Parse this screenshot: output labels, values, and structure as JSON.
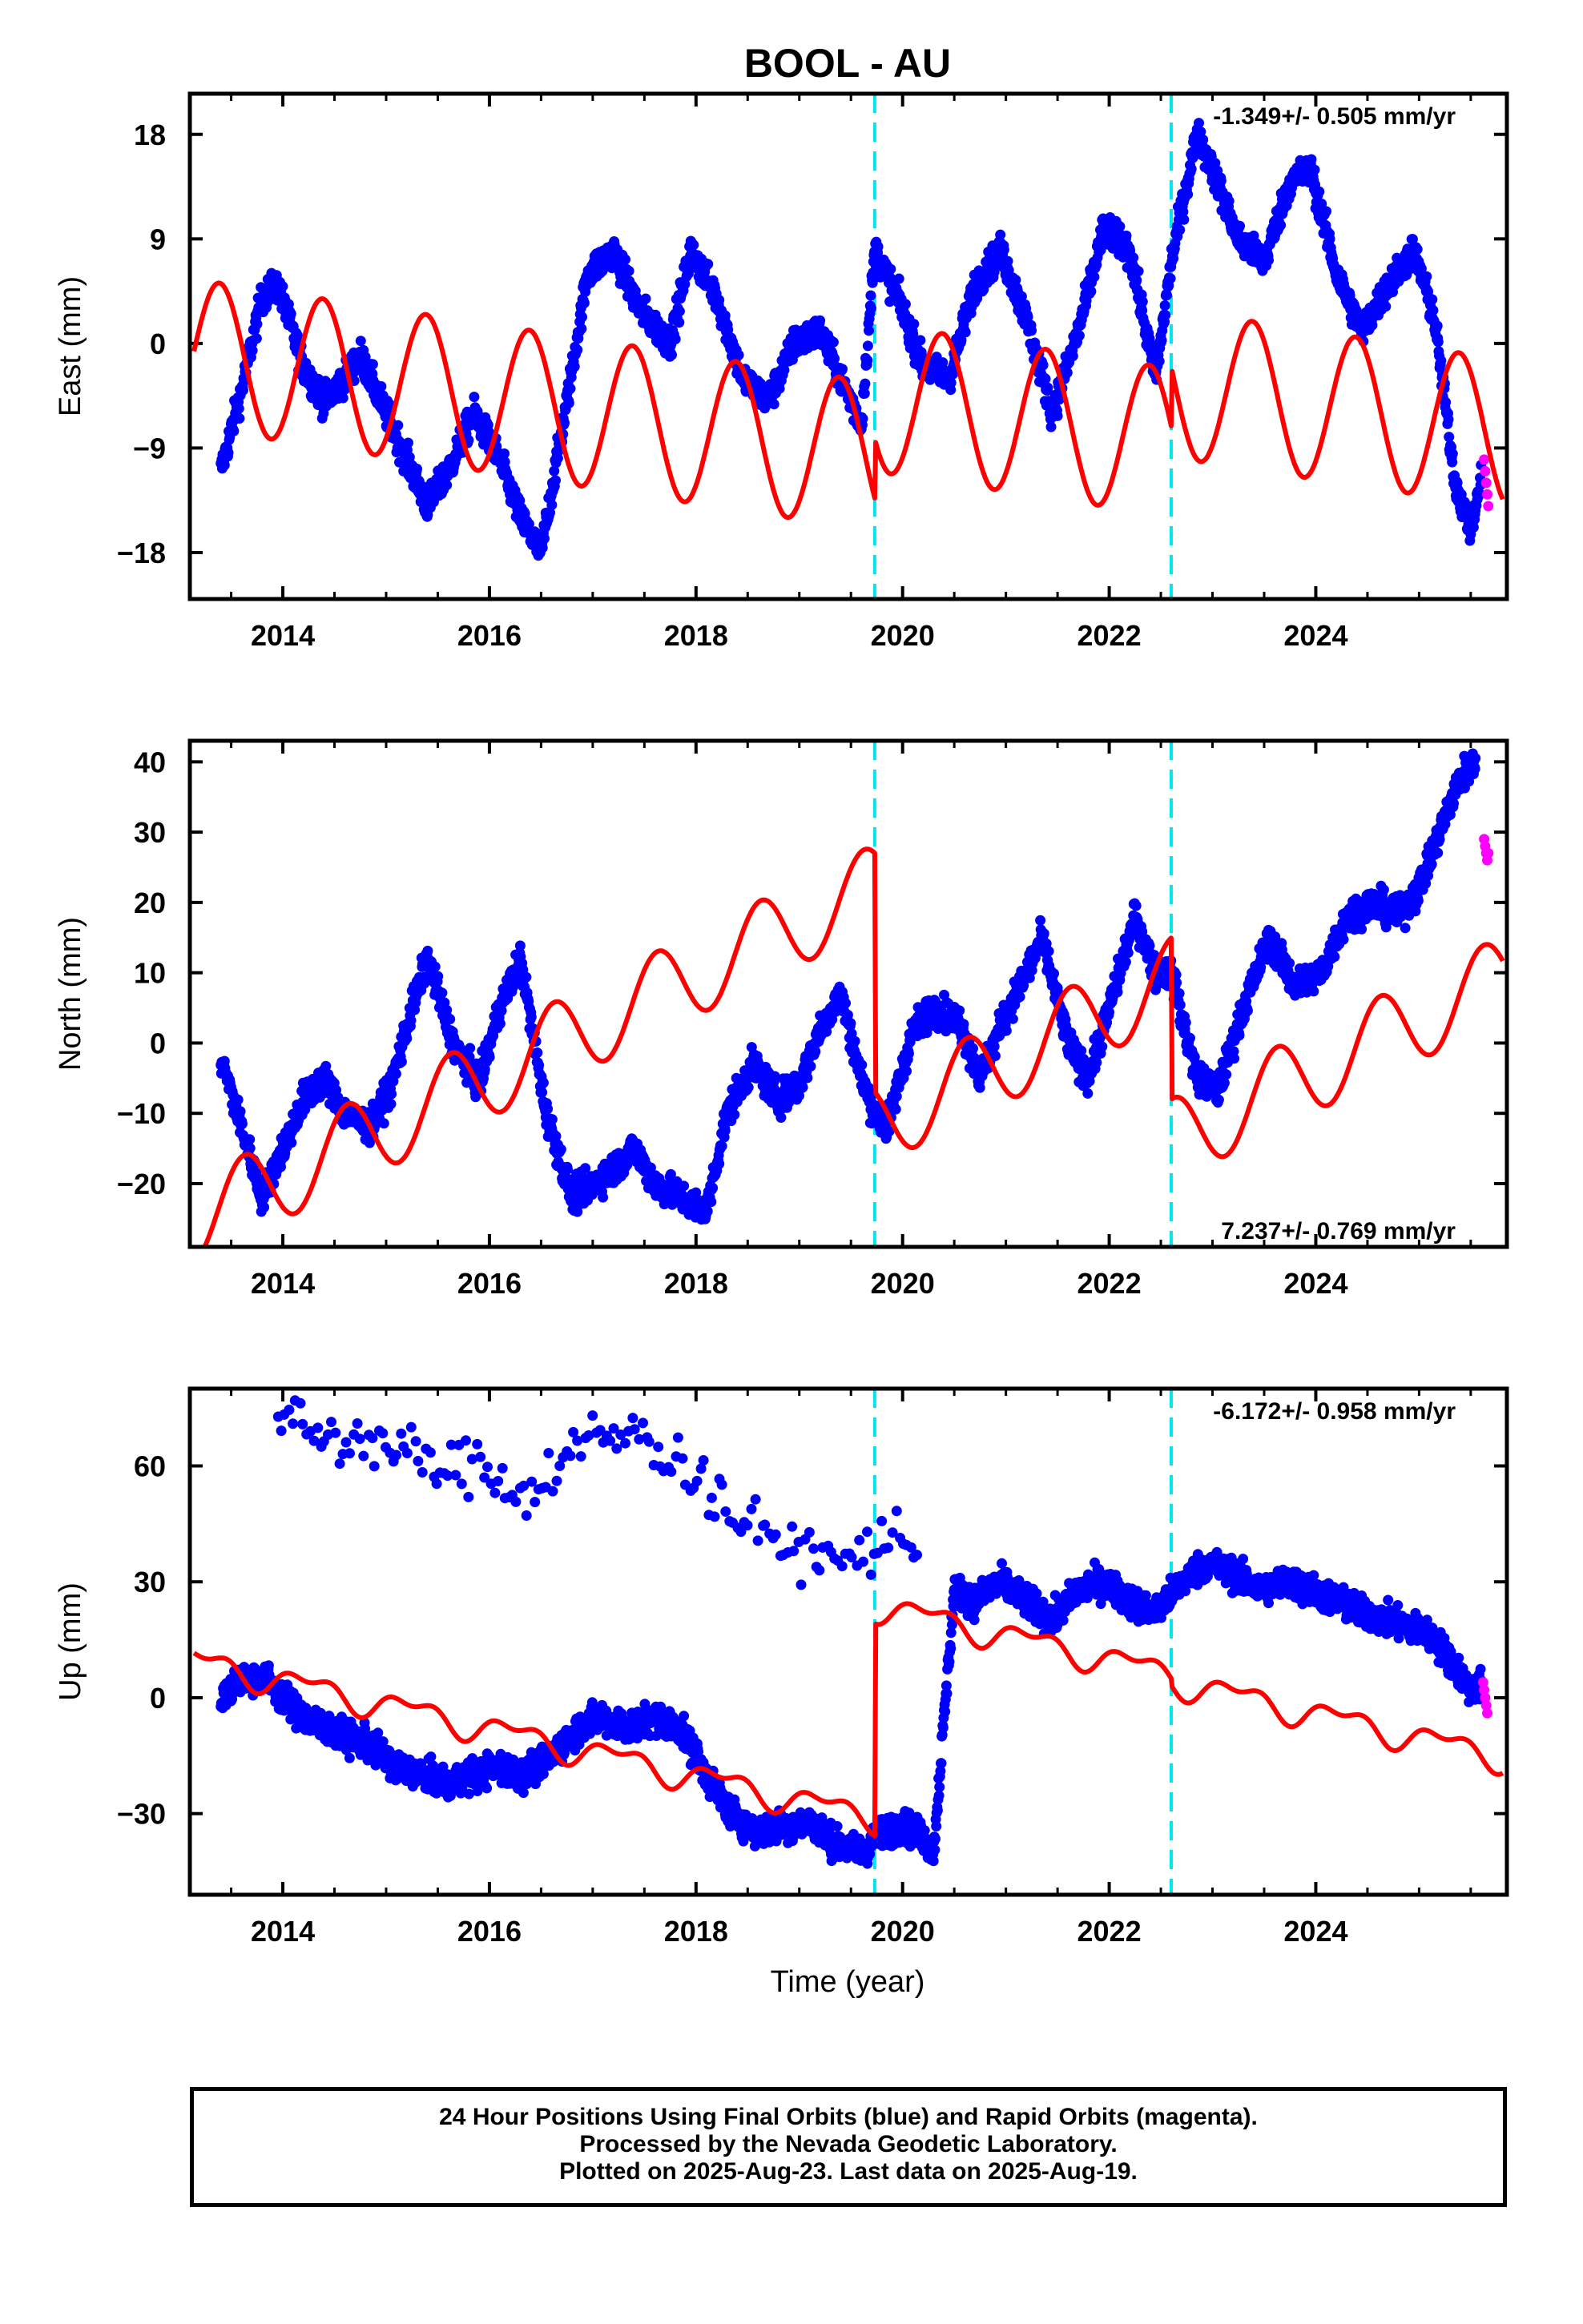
{
  "figure": {
    "title": "BOOL - AU",
    "xlabel": "Time (year)",
    "footer": [
      "24 Hour Positions Using Final Orbits (blue) and Rapid Orbits (magenta).",
      "Processed by the Nevada Geodetic Laboratory.",
      "Plotted on 2025-Aug-23. Last data on 2025-Aug-19."
    ]
  },
  "colors": {
    "final_orbits": "#0000ff",
    "rapid_orbits": "#ff00ff",
    "model_fit": "#ff0000",
    "steps": "#00e5ee",
    "frame": "#000000"
  },
  "chart_data": [
    {
      "type": "scatter",
      "ylabel": "East (mm)",
      "xlim": [
        2013.1,
        2025.85
      ],
      "ylim": [
        -22,
        21.5
      ],
      "xticks": [
        2014,
        2016,
        2018,
        2020,
        2022,
        2024
      ],
      "yticks": [
        -18,
        -9,
        0,
        9,
        18
      ],
      "ytick_labels": [
        "−18",
        "−9",
        "0",
        "9",
        "18"
      ],
      "rate": "-1.349+/- 0.505 mm/yr",
      "rate_position": "top-right",
      "steps": [
        2019.73,
        2022.6
      ],
      "series": [
        {
          "role": "final",
          "x": [
            2013.4,
            2013.6,
            2013.8,
            2013.95,
            2014.2,
            2014.4,
            2014.6,
            2014.75,
            2015.0,
            2015.2,
            2015.4,
            2015.6,
            2015.85,
            2016.1,
            2016.3,
            2016.5,
            2016.75,
            2016.95,
            2017.2,
            2017.45,
            2017.75,
            2017.95,
            2018.2,
            2018.45,
            2018.7,
            2018.95,
            2019.2,
            2019.45,
            2019.6,
            2019.73,
            2019.95,
            2020.2,
            2020.45,
            2020.7,
            2020.95,
            2021.2,
            2021.45,
            2021.7,
            2021.95,
            2022.2,
            2022.45,
            2022.6,
            2022.85,
            2023.0,
            2023.25,
            2023.5,
            2023.75,
            2023.95,
            2024.2,
            2024.45,
            2024.7,
            2024.95,
            2025.15,
            2025.35,
            2025.5,
            2025.6
          ],
          "y": [
            -11,
            -4,
            4,
            5,
            -2,
            -5,
            -3,
            -1,
            -6,
            -10,
            -14,
            -11,
            -6,
            -10,
            -15,
            -18,
            -5,
            6,
            8,
            3,
            0,
            8,
            4,
            -3,
            -5,
            0,
            1,
            -4,
            -7,
            8,
            4,
            -2,
            -3,
            5,
            8,
            2,
            -6,
            1,
            10,
            8,
            -3,
            7,
            18,
            15,
            9,
            7,
            14,
            15,
            6,
            1,
            5,
            8,
            2,
            -12,
            -16,
            -12
          ]
        },
        {
          "role": "rapid",
          "x": [
            2025.63,
            2025.64,
            2025.65,
            2025.66,
            2025.67
          ],
          "y": [
            -10,
            -11,
            -12,
            -13,
            -14
          ]
        },
        {
          "role": "model",
          "model": {
            "t0": 2013.4,
            "segments": [
              [
                2013.1,
                2019.73,
                -1.2,
                -1.349
              ],
              [
                2019.73,
                2022.6,
                3.9,
                -1.349
              ],
              [
                2022.6,
                2025.85,
                9.0,
                -1.349
              ]
            ],
            "annual_cos": -4.8,
            "annual_sin": 4.2,
            "semiannual_cos": 0.0,
            "semiannual_sin": 0.0
          }
        }
      ]
    },
    {
      "type": "scatter",
      "ylabel": "North (mm)",
      "xlim": [
        2013.1,
        2025.85
      ],
      "ylim": [
        -29,
        43
      ],
      "xticks": [
        2014,
        2016,
        2018,
        2020,
        2022,
        2024
      ],
      "yticks": [
        -20,
        -10,
        0,
        10,
        20,
        30,
        40
      ],
      "ytick_labels": [
        "−20",
        "−10",
        "0",
        "10",
        "20",
        "30",
        "40"
      ],
      "rate": "7.237+/- 0.769 mm/yr",
      "rate_position": "bottom-right",
      "steps": [
        2019.73,
        2022.6
      ],
      "series": [
        {
          "role": "final",
          "x": [
            2013.4,
            2013.6,
            2013.8,
            2014.0,
            2014.2,
            2014.4,
            2014.6,
            2014.85,
            2015.05,
            2015.25,
            2015.4,
            2015.65,
            2015.9,
            2016.1,
            2016.3,
            2016.55,
            2016.8,
            2017.0,
            2017.2,
            2017.4,
            2017.6,
            2017.85,
            2018.1,
            2018.3,
            2018.55,
            2018.8,
            2019.0,
            2019.2,
            2019.4,
            2019.6,
            2019.73,
            2019.85,
            2020.1,
            2020.3,
            2020.55,
            2020.75,
            2021.0,
            2021.2,
            2021.35,
            2021.6,
            2021.8,
            2022.0,
            2022.25,
            2022.45,
            2022.6,
            2022.85,
            2023.05,
            2023.3,
            2023.55,
            2023.8,
            2024.05,
            2024.3,
            2024.55,
            2024.8,
            2025.0,
            2025.2,
            2025.4,
            2025.55
          ],
          "y": [
            -2,
            -12,
            -22,
            -15,
            -8,
            -5,
            -10,
            -12,
            -6,
            5,
            12,
            0,
            -6,
            5,
            12,
            -10,
            -22,
            -20,
            -18,
            -15,
            -20,
            -22,
            -24,
            -10,
            -3,
            -8,
            -6,
            2,
            7,
            -5,
            -10,
            -12,
            2,
            5,
            3,
            -5,
            4,
            10,
            15,
            0,
            -5,
            5,
            18,
            10,
            10,
            -5,
            -7,
            5,
            15,
            8,
            10,
            18,
            20,
            18,
            22,
            30,
            38,
            40
          ]
        },
        {
          "role": "rapid",
          "x": [
            2025.63,
            2025.64,
            2025.65,
            2025.66,
            2025.67
          ],
          "y": [
            29,
            28,
            27,
            26,
            27
          ]
        },
        {
          "role": "model",
          "model": {
            "t0": 2013.4,
            "segments": [
              [
                2013.1,
                2019.73,
                -23.5,
                7.237
              ],
              [
                2019.73,
                2022.6,
                -57.5,
                7.237
              ],
              [
                2022.6,
                2025.85,
                -80.5,
                7.237
              ]
            ],
            "annual_cos": -4.2,
            "annual_sin": -4.2,
            "semiannual_cos": 0.0,
            "semiannual_sin": 0.0
          }
        }
      ]
    },
    {
      "type": "scatter",
      "ylabel": "Up (mm)",
      "xlim": [
        2013.1,
        2025.85
      ],
      "ylim": [
        -51,
        80
      ],
      "xticks": [
        2014,
        2016,
        2018,
        2020,
        2022,
        2024
      ],
      "yticks": [
        -30,
        0,
        30,
        60
      ],
      "ytick_labels": [
        "−30",
        "0",
        "30",
        "60"
      ],
      "rate": "-6.172+/- 0.958 mm/yr",
      "rate_position": "top-right",
      "steps": [
        2019.73,
        2022.6
      ],
      "series": [
        {
          "role": "final",
          "x": [
            2013.4,
            2013.6,
            2013.8,
            2014.0,
            2014.2,
            2014.4,
            2014.6,
            2014.85,
            2015.1,
            2015.35,
            2015.6,
            2015.85,
            2016.1,
            2016.35,
            2016.6,
            2016.85,
            2017.1,
            2017.35,
            2017.6,
            2017.85,
            2018.1,
            2018.35,
            2018.6,
            2018.85,
            2019.1,
            2019.35,
            2019.6,
            2019.8,
            2020.0,
            2020.2,
            2020.3,
            2020.5,
            2020.7,
            2020.95,
            2021.2,
            2021.45,
            2021.7,
            2021.95,
            2022.2,
            2022.45,
            2022.7,
            2022.95,
            2023.2,
            2023.45,
            2023.7,
            2023.95,
            2024.2,
            2024.45,
            2024.7,
            2024.95,
            2025.15,
            2025.35,
            2025.5,
            2025.6
          ],
          "y": [
            0,
            5,
            6,
            0,
            -5,
            -8,
            -10,
            -12,
            -18,
            -20,
            -22,
            -20,
            -18,
            -20,
            -15,
            -8,
            -5,
            -8,
            -5,
            -8,
            -20,
            -30,
            -35,
            -33,
            -32,
            -38,
            -40,
            -35,
            -33,
            -36,
            -40,
            28,
            25,
            30,
            25,
            20,
            28,
            30,
            25,
            22,
            30,
            35,
            32,
            28,
            30,
            28,
            25,
            22,
            20,
            18,
            15,
            8,
            2,
            3
          ]
        },
        {
          "role": "final",
          "x": [
            2013.95,
            2014.2,
            2014.5,
            2014.8,
            2015.1,
            2015.4,
            2015.65,
            2015.9,
            2016.2,
            2016.4,
            2016.6,
            2016.8,
            2017.0,
            2017.25,
            2017.5,
            2017.7,
            2017.9,
            2018.1,
            2018.35,
            2018.6,
            2018.85,
            2019.1,
            2019.35,
            2019.55,
            2019.75,
            2019.95,
            2020.15
          ],
          "y": [
            74,
            70,
            66,
            68,
            64,
            61,
            58,
            62,
            55,
            52,
            60,
            63,
            68,
            66,
            70,
            62,
            60,
            55,
            48,
            43,
            40,
            38,
            35,
            36,
            40,
            42,
            40
          ]
        },
        {
          "role": "rapid",
          "x": [
            2025.62,
            2025.63,
            2025.64,
            2025.65,
            2025.66
          ],
          "y": [
            4,
            2,
            0,
            -2,
            -4
          ]
        },
        {
          "role": "model",
          "model": {
            "t0": 2013.4,
            "segments": [
              [
                2013.1,
                2019.73,
                8.0,
                -6.172
              ],
              [
                2019.73,
                2022.6,
                63.0,
                -6.172
              ],
              [
                2022.6,
                2025.85,
                61.2,
                -6.172
              ]
            ],
            "annual_cos": 0.0,
            "annual_sin": 3.0,
            "semiannual_cos": 1.8,
            "semiannual_sin": 0.0
          }
        }
      ]
    }
  ]
}
